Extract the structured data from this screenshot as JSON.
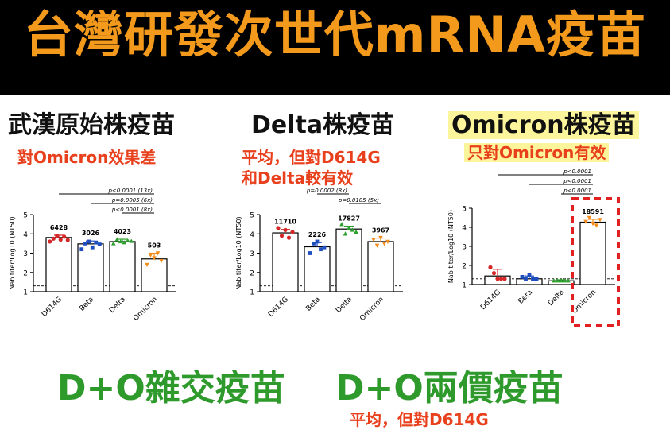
{
  "header": {
    "title": "台灣研發次世代mRNA疫苗"
  },
  "panels": [
    {
      "heading": "武漢原始株疫苗",
      "note_lines": [
        "對Omicron效果差"
      ]
    },
    {
      "heading": "Delta株疫苗",
      "note_lines": [
        "平均，但對D614G",
        "和Delta較有效"
      ]
    },
    {
      "heading": "Omicron株疫苗",
      "note_lines": [
        "只對Omicron有效"
      ]
    }
  ],
  "footer": {
    "left": "D+O雜交疫苗",
    "right": "D+O兩價疫苗",
    "cut_text": "平均，但對D614G"
  },
  "colors": {
    "banner_bg": "#000000",
    "title": "#f39a1c",
    "note": "#e8401c",
    "footer": "#2f9a2c",
    "highlight": "#fdf59b",
    "box": "#e32020"
  },
  "chart_data": [
    {
      "type": "bar",
      "categories": [
        "D614G",
        "Beta",
        "Delta",
        "Omicron"
      ],
      "ylabel": "Nab titer/Log10 (NT50)",
      "ylim": [
        1,
        5
      ],
      "yticks": [
        1,
        2,
        3,
        4,
        5
      ],
      "threshold": 1.3,
      "series": [
        {
          "values": [
            3.81,
            3.48,
            3.6,
            2.7
          ],
          "errors": [
            0.12,
            0.15,
            0.12,
            0.3
          ]
        }
      ],
      "value_labels": [
        "6428",
        "3026",
        "4023",
        "503"
      ],
      "points": [
        [
          3.6,
          3.75,
          3.9,
          3.7,
          3.85,
          3.68
        ],
        [
          3.2,
          3.5,
          3.6,
          3.3,
          3.55,
          3.45
        ],
        [
          3.5,
          3.7,
          3.6,
          3.55,
          3.65,
          3.62
        ],
        [
          2.4,
          2.9,
          2.75,
          3.0,
          2.6
        ]
      ],
      "point_colors": [
        "#d62728",
        "#1f4fbf",
        "#2ca02c",
        "#f28c1b"
      ],
      "significance": [
        {
          "from": 0,
          "to": 3,
          "label": "p<0.0001 (13x)"
        },
        {
          "from": 1,
          "to": 3,
          "label": "p=0.0005 (6x)"
        },
        {
          "from": 2,
          "to": 3,
          "label": "p<0.0001 (8x)"
        }
      ]
    },
    {
      "type": "bar",
      "categories": [
        "D614G",
        "Beta",
        "Delta",
        "Omicron"
      ],
      "ylabel": "Nab titer/Log10 (NT50)",
      "ylim": [
        1,
        5
      ],
      "yticks": [
        1,
        2,
        3,
        4,
        5
      ],
      "threshold": 1.3,
      "series": [
        {
          "values": [
            4.05,
            3.33,
            4.25,
            3.6
          ],
          "errors": [
            0.18,
            0.22,
            0.15,
            0.18
          ]
        }
      ],
      "value_labels": [
        "11710",
        "2226",
        "17827",
        "3967"
      ],
      "points": [
        [
          4.3,
          3.9,
          4.2,
          3.8,
          4.1
        ],
        [
          3.0,
          3.5,
          3.6,
          3.2,
          3.3
        ],
        [
          4.5,
          4.0,
          4.3,
          4.2,
          4.1
        ],
        [
          3.7,
          3.4,
          3.8,
          3.5,
          3.6
        ]
      ],
      "point_colors": [
        "#d62728",
        "#1f4fbf",
        "#2ca02c",
        "#f28c1b"
      ],
      "significance": [
        {
          "from": 1,
          "to": 2,
          "label": "p=0.0002 (8x)"
        },
        {
          "from": 2,
          "to": 3,
          "label": "p=0.0105 (5x)"
        }
      ]
    },
    {
      "type": "bar",
      "categories": [
        "D614G",
        "Beta",
        "Delta",
        "Omicron"
      ],
      "ylabel": "Nab titer/Log10 (NT50)",
      "ylim": [
        1,
        5
      ],
      "yticks": [
        1,
        2,
        3,
        4,
        5
      ],
      "threshold": 1.3,
      "series": [
        {
          "values": [
            1.45,
            1.3,
            1.2,
            4.27
          ],
          "errors": [
            0.35,
            0.15,
            0.05,
            0.15
          ]
        }
      ],
      "value_labels": [
        "",
        "",
        "",
        "18591"
      ],
      "points": [
        [
          1.9,
          1.6,
          1.3,
          1.3,
          1.3
        ],
        [
          1.4,
          1.3,
          1.5,
          1.3,
          1.3
        ],
        [
          1.2,
          1.2,
          1.2,
          1.2,
          1.2
        ],
        [
          4.3,
          4.5,
          4.2,
          4.1,
          4.4
        ]
      ],
      "point_colors": [
        "#d62728",
        "#1f4fbf",
        "#2ca02c",
        "#f28c1b"
      ],
      "significance": [
        {
          "from": 0,
          "to": 3,
          "label": "p<0.0001"
        },
        {
          "from": 1,
          "to": 3,
          "label": "p<0.0001"
        },
        {
          "from": 2,
          "to": 3,
          "label": "p<0.0001"
        }
      ]
    }
  ]
}
